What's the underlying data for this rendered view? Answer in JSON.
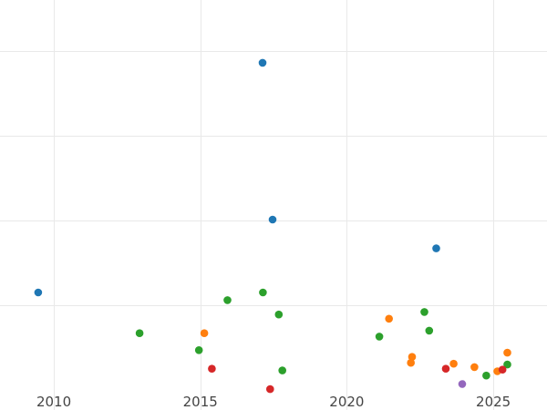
{
  "colors": {
    "background": "#ffffff",
    "grid": "#e9e9e9",
    "tick_text": "#444444",
    "blue": "#1f77b4",
    "orange": "#ff7f0e",
    "green": "#2ca02c",
    "red": "#d62728",
    "purple": "#9467bd"
  },
  "chart_data": {
    "type": "scatter",
    "title": "",
    "xlabel": "",
    "ylabel": "",
    "x_axis": "date",
    "xlim": [
      "2008-03-01",
      "2026-11-01"
    ],
    "ylim": [
      0,
      460
    ],
    "x_ticks": [
      {
        "x": "2010-01-01",
        "label": "2010"
      },
      {
        "x": "2015-01-01",
        "label": "2015"
      },
      {
        "x": "2020-01-01",
        "label": "2020"
      },
      {
        "x": "2025-01-01",
        "label": "2025"
      }
    ],
    "y_gridlines": [
      100,
      200,
      300,
      400
    ],
    "y_tick_labels_shown": false,
    "legend": "none",
    "grid": true,
    "series": [
      {
        "color": "#1f77b4",
        "points": [
          {
            "x": "2009-06-20",
            "y": 115
          },
          {
            "x": "2017-02-15",
            "y": 386
          },
          {
            "x": "2017-06-20",
            "y": 201
          },
          {
            "x": "2023-01-20",
            "y": 167
          }
        ]
      },
      {
        "color": "#ff7f0e",
        "points": [
          {
            "x": "2015-02-20",
            "y": 67
          },
          {
            "x": "2021-06-10",
            "y": 84
          },
          {
            "x": "2022-03-25",
            "y": 39
          },
          {
            "x": "2022-03-10",
            "y": 32
          },
          {
            "x": "2023-08-25",
            "y": 31
          },
          {
            "x": "2024-05-10",
            "y": 27
          },
          {
            "x": "2025-02-20",
            "y": 22
          },
          {
            "x": "2025-06-25",
            "y": 44
          }
        ]
      },
      {
        "color": "#2ca02c",
        "points": [
          {
            "x": "2012-12-05",
            "y": 67
          },
          {
            "x": "2014-12-15",
            "y": 47
          },
          {
            "x": "2015-12-05",
            "y": 106
          },
          {
            "x": "2017-02-20",
            "y": 115
          },
          {
            "x": "2017-09-05",
            "y": 89
          },
          {
            "x": "2017-10-20",
            "y": 23
          },
          {
            "x": "2021-02-10",
            "y": 63
          },
          {
            "x": "2022-08-25",
            "y": 92
          },
          {
            "x": "2022-10-25",
            "y": 70
          },
          {
            "x": "2024-10-05",
            "y": 17
          },
          {
            "x": "2025-06-25",
            "y": 30
          }
        ]
      },
      {
        "color": "#d62728",
        "points": [
          {
            "x": "2015-05-25",
            "y": 25
          },
          {
            "x": "2017-05-20",
            "y": 1
          },
          {
            "x": "2023-05-20",
            "y": 25
          },
          {
            "x": "2025-04-25",
            "y": 24
          }
        ]
      },
      {
        "color": "#9467bd",
        "points": [
          {
            "x": "2023-12-10",
            "y": 7
          }
        ]
      }
    ]
  }
}
